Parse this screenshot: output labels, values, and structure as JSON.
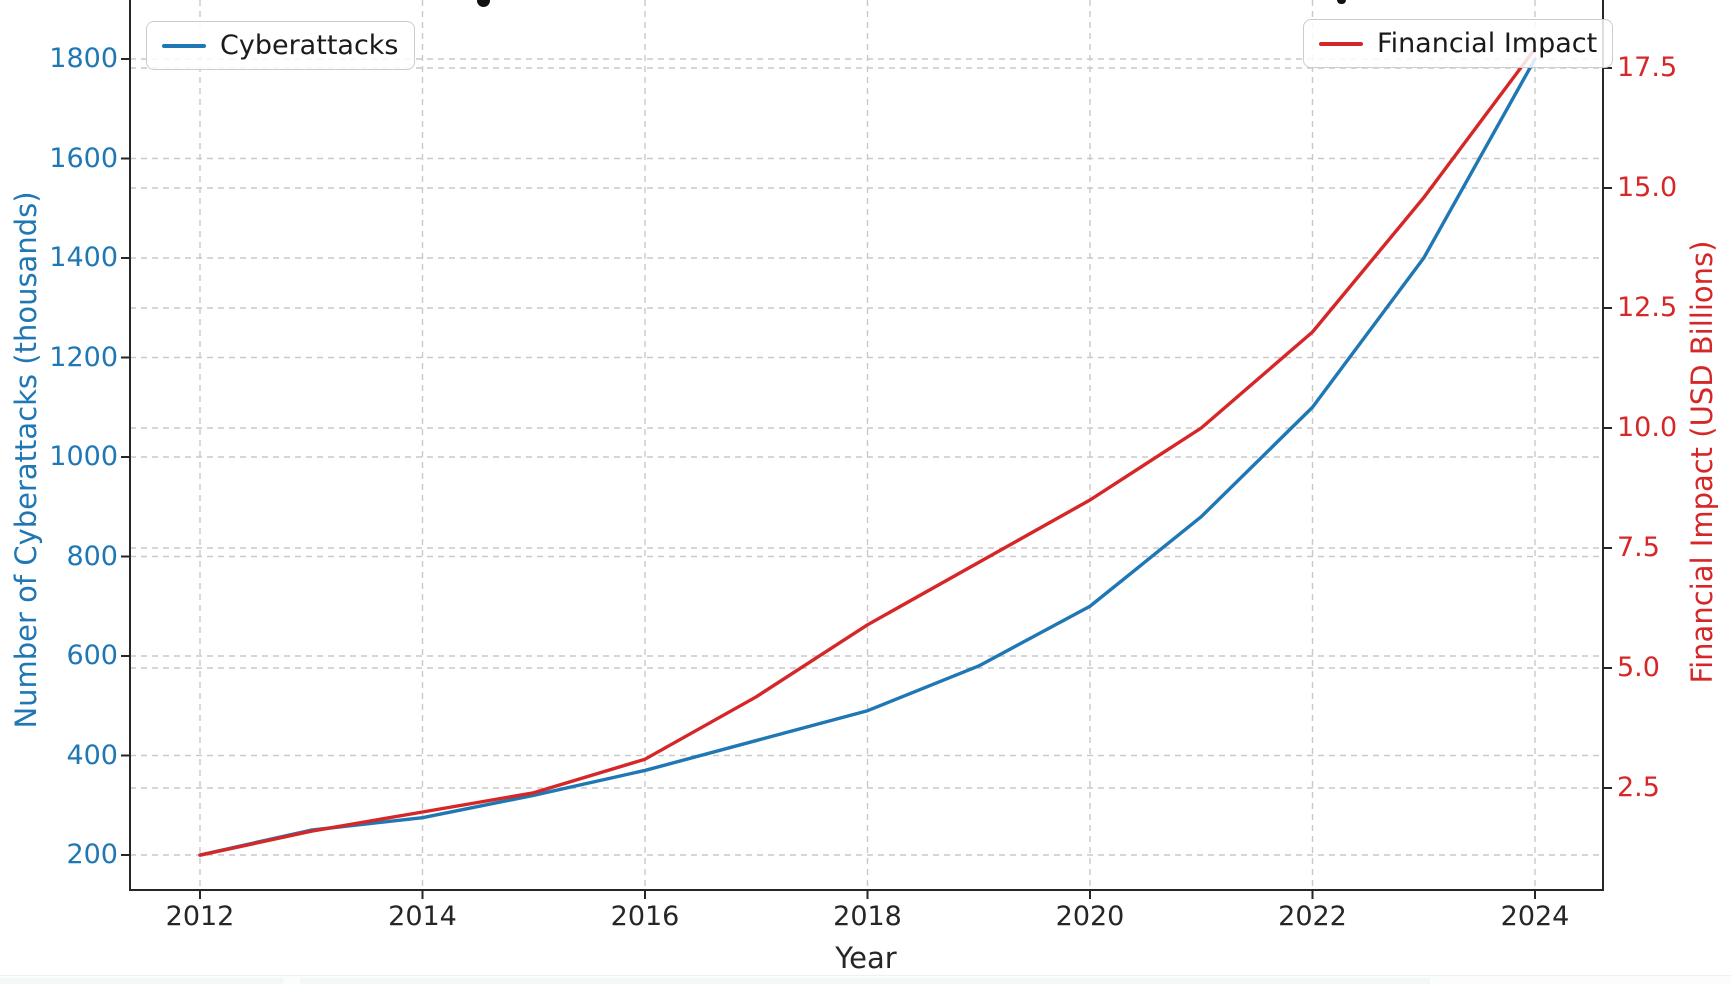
{
  "chart_data": {
    "type": "line",
    "x": [
      2012,
      2013,
      2014,
      2015,
      2016,
      2017,
      2018,
      2019,
      2020,
      2021,
      2022,
      2023,
      2024
    ],
    "x_ticks": [
      2012,
      2014,
      2016,
      2018,
      2020,
      2022,
      2024
    ],
    "xlabel": "Year",
    "series": [
      {
        "name": "Cyberattacks",
        "axis": "left",
        "color": "#1f77b4",
        "values": [
          200,
          250,
          275,
          320,
          370,
          430,
          490,
          580,
          700,
          880,
          1100,
          1400,
          1800
        ]
      },
      {
        "name": "Financial Impact",
        "axis": "right",
        "color": "#d62728",
        "values": [
          1.1,
          1.6,
          2.0,
          2.4,
          3.1,
          4.4,
          5.9,
          7.2,
          8.5,
          10.0,
          12.0,
          14.8,
          17.9
        ]
      }
    ],
    "left_axis": {
      "label": "Number of Cyberattacks (thousands)",
      "color": "#1f77b4",
      "ticks": [
        200,
        400,
        600,
        800,
        1000,
        1200,
        1400,
        1600,
        1800
      ],
      "range": [
        130,
        1920
      ]
    },
    "right_axis": {
      "label": "Financial Impact (USD Billions)",
      "color": "#d62728",
      "ticks": [
        "2.5",
        "5.0",
        "7.5",
        "10.0",
        "12.5",
        "15.0",
        "17.5"
      ],
      "range": [
        0.4,
        18.9
      ]
    },
    "xlim": [
      2011.4,
      2024.6
    ],
    "grid": "dashed",
    "legend_positions": [
      "upper left",
      "upper right"
    ]
  }
}
